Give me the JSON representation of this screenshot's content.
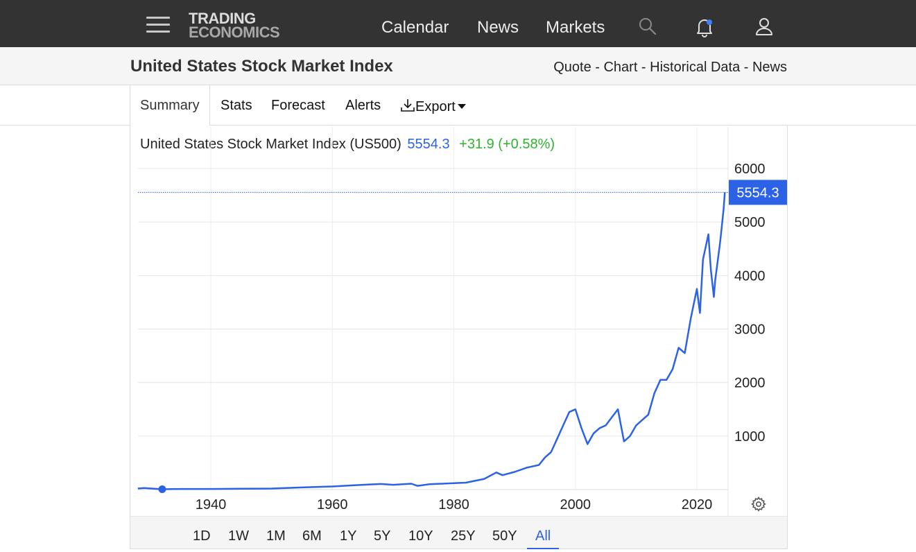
{
  "navbar": {
    "logo_line1": "TRADING",
    "logo_line2": "ECONOMICS",
    "links": [
      "Calendar",
      "News",
      "Markets"
    ],
    "icons": [
      "menu-icon",
      "search-icon",
      "bell-icon",
      "user-icon"
    ],
    "notification_dot_color": "#3b82f6"
  },
  "title_bar": {
    "title": "United States Stock Market Index",
    "crumbs": [
      "Quote",
      "Chart",
      "Historical Data",
      "News"
    ],
    "separator": " - "
  },
  "tabs": {
    "items": [
      "Summary",
      "Stats",
      "Forecast",
      "Alerts",
      "Export"
    ],
    "active": "Summary",
    "export_icon": "download-icon"
  },
  "quote": {
    "name": "United States Stock Market Index (US500)",
    "price": "5554.3",
    "change": "+31.9 (+0.58%)"
  },
  "ranges": {
    "items": [
      "1D",
      "1W",
      "1M",
      "6M",
      "1Y",
      "5Y",
      "10Y",
      "25Y",
      "50Y",
      "All"
    ],
    "active": "All"
  },
  "colors": {
    "navbar": "#333333",
    "accent": "#2b62e6",
    "positive": "#2fb32f"
  },
  "chart_data": {
    "type": "line",
    "title": "",
    "xlabel": "",
    "ylabel": "",
    "x_ticks": [
      1940,
      1960,
      1980,
      2000,
      2020
    ],
    "y_ticks": [
      1000,
      2000,
      3000,
      4000,
      5000,
      6000
    ],
    "xlim": [
      1928,
      2025
    ],
    "ylim": [
      0,
      6000
    ],
    "y_axis_side": "right",
    "last_value_label": "5554.3",
    "grid": true,
    "series": [
      {
        "color": "#2b62e6",
        "x": [
          1928,
          1929,
          1932,
          1935,
          1940,
          1945,
          1950,
          1955,
          1960,
          1965,
          1968,
          1970,
          1973,
          1974,
          1976,
          1980,
          1982,
          1985,
          1987,
          1988,
          1990,
          1992,
          1994,
          1995,
          1996,
          1997,
          1998,
          1999,
          2000,
          2001,
          2002,
          2003,
          2004,
          2005,
          2006,
          2007,
          2008,
          2009,
          2010,
          2011,
          2012,
          2013,
          2014,
          2015,
          2016,
          2017,
          2018,
          2019,
          2020,
          2020.5,
          2021,
          2021.9,
          2022.3,
          2022.8,
          2023,
          2023.8,
          2024,
          2024.4,
          2024.6
        ],
        "y": [
          20,
          30,
          7,
          12,
          12,
          16,
          20,
          40,
          58,
          90,
          105,
          90,
          110,
          70,
          100,
          120,
          130,
          200,
          320,
          270,
          330,
          410,
          460,
          600,
          700,
          950,
          1200,
          1450,
          1500,
          1150,
          850,
          1050,
          1150,
          1200,
          1350,
          1500,
          900,
          1000,
          1200,
          1300,
          1400,
          1800,
          2050,
          2050,
          2250,
          2650,
          2550,
          3200,
          3750,
          3300,
          4300,
          4770,
          4100,
          3600,
          3900,
          4600,
          4800,
          5250,
          5554.3
        ]
      }
    ],
    "start_marker_year": 1928
  }
}
